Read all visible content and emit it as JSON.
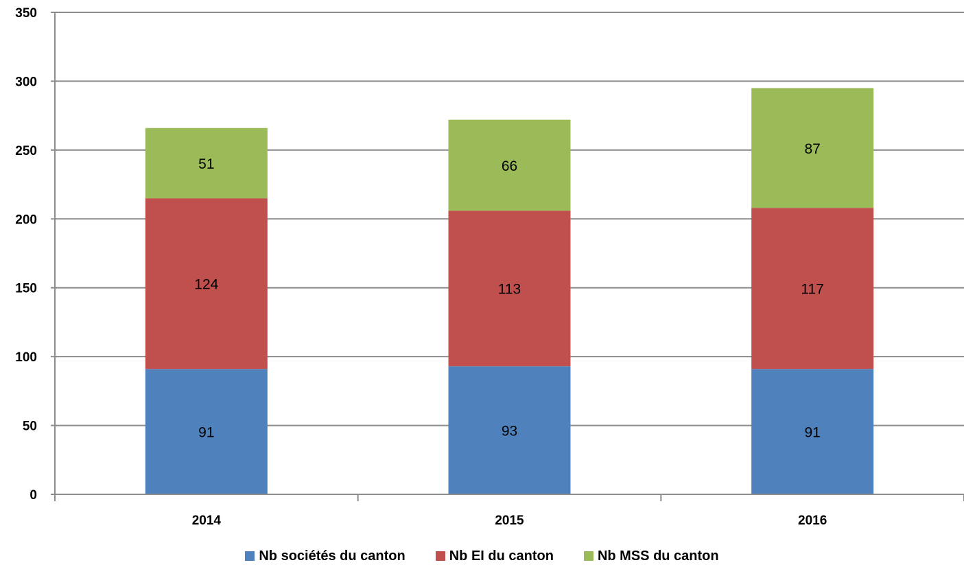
{
  "chart_data": {
    "type": "bar",
    "stacked": true,
    "title": "",
    "xlabel": "",
    "ylabel": "",
    "categories": [
      "2014",
      "2015",
      "2016"
    ],
    "series": [
      {
        "name": "Nb sociétés du canton",
        "color": "#4F81BD",
        "values": [
          91,
          93,
          91
        ]
      },
      {
        "name": "Nb EI du canton",
        "color": "#C0504D",
        "values": [
          124,
          113,
          117
        ]
      },
      {
        "name": "Nb MSS du canton",
        "color": "#9BBB59",
        "values": [
          51,
          66,
          87
        ]
      }
    ],
    "ylim": [
      0,
      350
    ],
    "yticks": [
      0,
      50,
      100,
      150,
      200,
      250,
      300,
      350
    ],
    "grid": true,
    "legend_position": "bottom"
  }
}
